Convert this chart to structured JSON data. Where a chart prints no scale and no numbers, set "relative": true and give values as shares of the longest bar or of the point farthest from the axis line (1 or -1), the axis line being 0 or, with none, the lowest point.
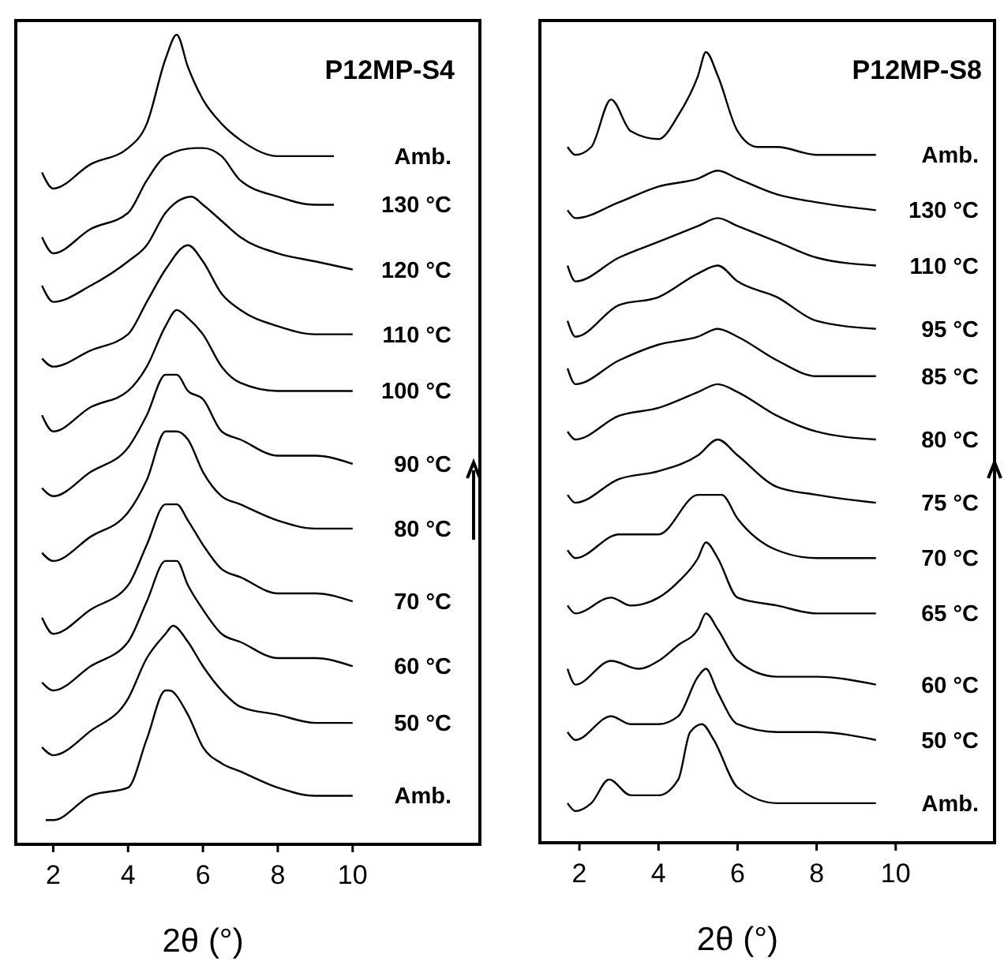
{
  "chart_data": [
    {
      "type": "line",
      "title": "P12MP-S4",
      "xlabel": "2θ (°)",
      "relative": true,
      "xlim": [
        1,
        13.4
      ],
      "xticks": [
        2,
        4,
        6,
        8,
        10
      ],
      "series": [
        {
          "name": "Amb.",
          "color": "#000000",
          "x": [
            1.7,
            2,
            3,
            4,
            4.5,
            5,
            5.3,
            5.6,
            6,
            6.5,
            7,
            8,
            9,
            9.5
          ],
          "values": [
            0.83,
            0.81,
            0.84,
            0.86,
            0.89,
            0.97,
            1,
            0.96,
            0.92,
            0.89,
            0.87,
            0.85,
            0.85,
            0.85
          ]
        },
        {
          "name": "130 °C",
          "color": "#000000",
          "x": [
            1.7,
            2,
            3,
            4,
            4.5,
            5,
            5.8,
            6,
            6.5,
            7,
            8,
            9,
            9.5
          ],
          "values": [
            0.75,
            0.73,
            0.76,
            0.78,
            0.82,
            0.85,
            0.86,
            0.86,
            0.85,
            0.82,
            0.8,
            0.79,
            0.79
          ]
        },
        {
          "name": "120 °C",
          "color": "#000000",
          "x": [
            1.7,
            2,
            3,
            4,
            4.5,
            5,
            5.7,
            6,
            6.5,
            7,
            8,
            9,
            10
          ],
          "values": [
            0.69,
            0.67,
            0.69,
            0.72,
            0.74,
            0.78,
            0.8,
            0.79,
            0.77,
            0.75,
            0.73,
            0.72,
            0.71
          ]
        },
        {
          "name": "110 °C",
          "color": "#000000",
          "x": [
            1.7,
            2,
            3,
            4,
            4.5,
            5,
            5.6,
            6,
            6.5,
            7,
            8,
            9,
            10
          ],
          "values": [
            0.6,
            0.59,
            0.61,
            0.63,
            0.67,
            0.71,
            0.74,
            0.72,
            0.68,
            0.66,
            0.64,
            0.63,
            0.63
          ]
        },
        {
          "name": "100 °C",
          "color": "#000000",
          "x": [
            1.7,
            2,
            3,
            4,
            4.5,
            5,
            5.3,
            5.6,
            6,
            6.5,
            7,
            8,
            9,
            10
          ],
          "values": [
            0.53,
            0.51,
            0.54,
            0.56,
            0.59,
            0.64,
            0.66,
            0.65,
            0.63,
            0.59,
            0.57,
            0.56,
            0.56,
            0.56
          ]
        },
        {
          "name": "90 °C",
          "color": "#000000",
          "x": [
            1.7,
            2,
            3,
            4,
            4.5,
            5,
            5.3,
            5.6,
            6,
            6.5,
            7,
            8,
            9,
            10
          ],
          "values": [
            0.44,
            0.43,
            0.46,
            0.49,
            0.53,
            0.58,
            0.58,
            0.56,
            0.55,
            0.51,
            0.5,
            0.48,
            0.48,
            0.47
          ]
        },
        {
          "name": "80 °C",
          "color": "#000000",
          "x": [
            1.7,
            2,
            3,
            4,
            4.5,
            5,
            5.3,
            5.6,
            6,
            6.5,
            7,
            8,
            9,
            10
          ],
          "values": [
            0.36,
            0.35,
            0.38,
            0.41,
            0.45,
            0.51,
            0.51,
            0.5,
            0.46,
            0.43,
            0.42,
            0.4,
            0.39,
            0.39
          ]
        },
        {
          "name": "70 °C",
          "color": "#000000",
          "x": [
            1.7,
            2,
            3,
            4,
            4.5,
            5,
            5.3,
            5.6,
            6,
            6.5,
            7,
            8,
            9,
            10
          ],
          "values": [
            0.28,
            0.26,
            0.29,
            0.32,
            0.37,
            0.42,
            0.42,
            0.4,
            0.37,
            0.34,
            0.33,
            0.31,
            0.31,
            0.3
          ]
        },
        {
          "name": "60 °C",
          "color": "#000000",
          "x": [
            1.7,
            2,
            3,
            4,
            4.5,
            5,
            5.3,
            5.6,
            6,
            6.5,
            7,
            8,
            9,
            10
          ],
          "values": [
            0.2,
            0.19,
            0.22,
            0.25,
            0.3,
            0.35,
            0.35,
            0.32,
            0.29,
            0.26,
            0.25,
            0.23,
            0.23,
            0.22
          ]
        },
        {
          "name": "50 °C",
          "color": "#000000",
          "x": [
            1.7,
            2,
            3,
            4,
            4.5,
            5,
            5.2,
            5.6,
            6,
            6.5,
            7,
            8,
            9,
            10
          ],
          "values": [
            0.12,
            0.11,
            0.14,
            0.18,
            0.23,
            0.26,
            0.27,
            0.25,
            0.22,
            0.19,
            0.17,
            0.16,
            0.15,
            0.15
          ]
        },
        {
          "name": "Amb.",
          "color": "#000000",
          "x": [
            1.8,
            2,
            3,
            4,
            4.5,
            5,
            5.1,
            5.6,
            6,
            6.5,
            7,
            8,
            9,
            10
          ],
          "values": [
            0.03,
            0.03,
            0.06,
            0.07,
            0.13,
            0.19,
            0.19,
            0.16,
            0.12,
            0.1,
            0.09,
            0.07,
            0.06,
            0.06
          ]
        }
      ]
    },
    {
      "type": "line",
      "title": "P12MP-S8",
      "xlabel": "2θ (°)",
      "relative": true,
      "xlim": [
        1,
        12.5
      ],
      "xticks": [
        2,
        4,
        6,
        8,
        10
      ],
      "series": [
        {
          "name": "Amb.",
          "color": "#000000",
          "x": [
            1.7,
            1.9,
            2.3,
            2.8,
            3.3,
            4,
            4.5,
            5,
            5.2,
            5.5,
            6,
            6.5,
            7,
            8,
            9.5
          ],
          "values": [
            0.88,
            0.87,
            0.88,
            0.94,
            0.9,
            0.89,
            0.92,
            0.97,
            1,
            0.97,
            0.9,
            0.88,
            0.88,
            0.87,
            0.87
          ]
        },
        {
          "name": "130 °C",
          "color": "#000000",
          "x": [
            1.7,
            1.9,
            3,
            4,
            5,
            5.5,
            6,
            7,
            8,
            9.5
          ],
          "values": [
            0.8,
            0.79,
            0.81,
            0.83,
            0.84,
            0.85,
            0.84,
            0.82,
            0.81,
            0.8
          ]
        },
        {
          "name": "110 °C",
          "color": "#000000",
          "x": [
            1.7,
            1.9,
            3,
            4,
            5,
            5.5,
            6,
            7,
            8,
            9.5
          ],
          "values": [
            0.73,
            0.71,
            0.74,
            0.76,
            0.78,
            0.79,
            0.78,
            0.76,
            0.74,
            0.73
          ]
        },
        {
          "name": "95 °C",
          "color": "#000000",
          "x": [
            1.7,
            1.9,
            3,
            4,
            5,
            5.5,
            6,
            7,
            8,
            9.5
          ],
          "values": [
            0.66,
            0.64,
            0.68,
            0.69,
            0.72,
            0.73,
            0.71,
            0.69,
            0.66,
            0.65
          ]
        },
        {
          "name": "85 °C",
          "color": "#000000",
          "x": [
            1.7,
            1.9,
            3,
            4,
            5,
            5.5,
            6,
            7,
            8,
            9.5
          ],
          "values": [
            0.6,
            0.58,
            0.61,
            0.63,
            0.64,
            0.65,
            0.64,
            0.61,
            0.59,
            0.59
          ]
        },
        {
          "name": "80 °C",
          "color": "#000000",
          "x": [
            1.7,
            1.9,
            3,
            4,
            5,
            5.5,
            6,
            7,
            8,
            9.5
          ],
          "values": [
            0.52,
            0.51,
            0.54,
            0.55,
            0.57,
            0.58,
            0.57,
            0.54,
            0.52,
            0.51
          ]
        },
        {
          "name": "75 °C",
          "color": "#000000",
          "x": [
            1.7,
            1.9,
            3,
            4,
            5,
            5.5,
            6,
            7,
            8,
            9.5
          ],
          "values": [
            0.44,
            0.43,
            0.46,
            0.47,
            0.49,
            0.51,
            0.49,
            0.45,
            0.44,
            0.43
          ]
        },
        {
          "name": "70 °C",
          "color": "#000000",
          "x": [
            1.7,
            1.9,
            3,
            4,
            5,
            5.3,
            5.6,
            6,
            7,
            8,
            9.5
          ],
          "values": [
            0.37,
            0.36,
            0.39,
            0.39,
            0.44,
            0.44,
            0.44,
            0.41,
            0.37,
            0.36,
            0.36
          ]
        },
        {
          "name": "65 °C",
          "color": "#000000",
          "x": [
            1.7,
            1.9,
            2.8,
            3.3,
            4,
            4.5,
            5,
            5.2,
            5.5,
            6,
            7,
            8,
            9.5
          ],
          "values": [
            0.3,
            0.29,
            0.31,
            0.3,
            0.31,
            0.33,
            0.36,
            0.38,
            0.36,
            0.31,
            0.3,
            0.29,
            0.29
          ]
        },
        {
          "name": "60 °C",
          "color": "#000000",
          "x": [
            1.7,
            1.9,
            2.8,
            3.5,
            4,
            4.5,
            5,
            5.2,
            5.5,
            6,
            7,
            8,
            9.5
          ],
          "values": [
            0.22,
            0.2,
            0.23,
            0.22,
            0.23,
            0.25,
            0.27,
            0.29,
            0.27,
            0.23,
            0.21,
            0.21,
            0.2
          ]
        },
        {
          "name": "50 °C",
          "color": "#000000",
          "x": [
            1.7,
            1.9,
            2.8,
            3.3,
            4,
            4.5,
            5,
            5.2,
            5.5,
            6,
            7,
            8,
            9.5
          ],
          "values": [
            0.14,
            0.13,
            0.16,
            0.15,
            0.15,
            0.16,
            0.21,
            0.22,
            0.19,
            0.15,
            0.14,
            0.14,
            0.13
          ]
        },
        {
          "name": "Amb.",
          "color": "#000000",
          "x": [
            1.7,
            1.9,
            2.3,
            2.75,
            3.3,
            4,
            4.5,
            4.8,
            5.1,
            5.4,
            6,
            7,
            8,
            9.5
          ],
          "values": [
            0.05,
            0.04,
            0.05,
            0.08,
            0.06,
            0.06,
            0.08,
            0.14,
            0.15,
            0.13,
            0.07,
            0.05,
            0.05,
            0.05
          ]
        }
      ]
    }
  ]
}
